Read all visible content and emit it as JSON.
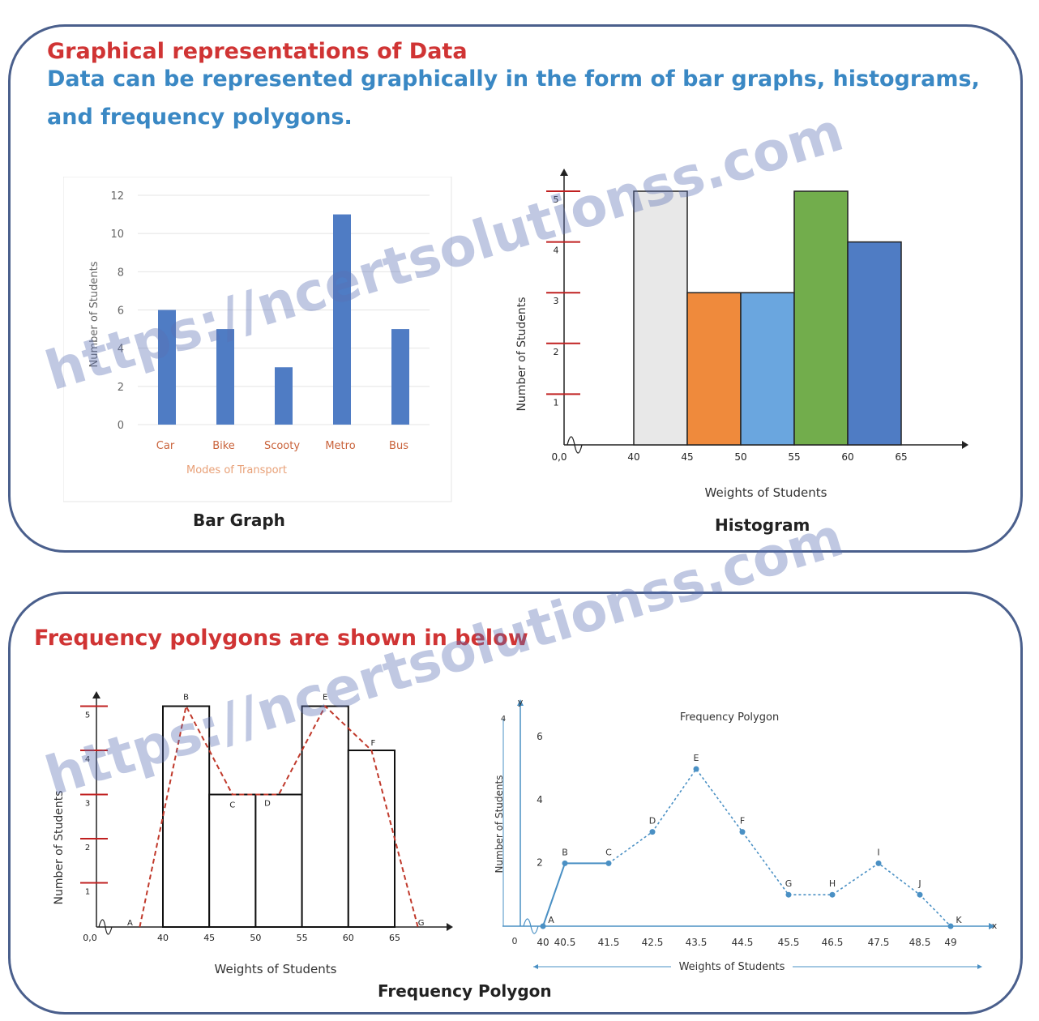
{
  "header": {
    "title": "Graphical representations of Data",
    "subtitle_line1": "Data can be represented graphically in the form of bar graphs, histograms,",
    "subtitle_line2": "and frequency polygons."
  },
  "section2": {
    "title": "Frequency polygons are shown in below"
  },
  "captions": {
    "bar": "Bar Graph",
    "histogram": "Histogram",
    "polygon": "Frequency Polygon"
  },
  "watermark": "https://ncertsolutionss.com",
  "colors": {
    "panel_border": "#4a5f8c",
    "title_red": "#d03434",
    "title_blue": "#3a88c4",
    "bar_blue": "#4f7cc4"
  },
  "chart_data": [
    {
      "id": "bar-graph",
      "type": "bar",
      "title": "Bar Graph",
      "categories": [
        "Car",
        "Bike",
        "Scooty",
        "Metro",
        "Bus"
      ],
      "values": [
        6,
        5,
        3,
        11,
        5
      ],
      "xlabel": "Modes of Transport",
      "ylabel": "Number of Students",
      "ylim": [
        0,
        12
      ],
      "yticks": [
        "0",
        "2",
        "4",
        "6",
        "8",
        "10",
        "12"
      ]
    },
    {
      "id": "histogram",
      "type": "bar",
      "title": "Histogram",
      "bins": [
        "40-45",
        "45-50",
        "50-55",
        "55-60",
        "60-65"
      ],
      "values": [
        5,
        3,
        3,
        5,
        4
      ],
      "bar_colors": [
        "#e8e8e8",
        "#ef8a3c",
        "#6aa6df",
        "#72ad4c",
        "#4f7cc4"
      ],
      "xticks": [
        "0,0",
        "40",
        "45",
        "50",
        "55",
        "60",
        "65"
      ],
      "yticks": [
        "1",
        "2",
        "3",
        "4",
        "5"
      ],
      "xlabel": "Weights of Students",
      "ylabel": "Number of Students"
    },
    {
      "id": "histogram-polygon",
      "type": "bar",
      "title": "",
      "bins": [
        "40-45",
        "45-50",
        "50-55",
        "55-60",
        "60-65"
      ],
      "values": [
        5,
        3,
        3,
        5,
        4
      ],
      "polygon_points": [
        {
          "label": "A",
          "x": 37.5,
          "y": 0
        },
        {
          "label": "B",
          "x": 42.5,
          "y": 5
        },
        {
          "label": "C",
          "x": 47.5,
          "y": 3
        },
        {
          "label": "D",
          "x": 52.5,
          "y": 3
        },
        {
          "label": "E",
          "x": 57.5,
          "y": 5
        },
        {
          "label": "F",
          "x": 62.5,
          "y": 4
        },
        {
          "label": "G",
          "x": 67.5,
          "y": 0
        }
      ],
      "xticks": [
        "0,0",
        "40",
        "45",
        "50",
        "55",
        "60",
        "65"
      ],
      "yticks": [
        "1",
        "2",
        "3",
        "4",
        "5"
      ],
      "xlabel": "Weights of Students",
      "ylabel": "Number of Students"
    },
    {
      "id": "frequency-polygon",
      "type": "line",
      "title": "Frequency Polygon",
      "x": [
        "40",
        "40.5",
        "41.5",
        "42.5",
        "43.5",
        "44.5",
        "45.5",
        "46.5",
        "47.5",
        "48.5",
        "49"
      ],
      "points": [
        {
          "label": "A",
          "y": 0
        },
        {
          "label": "B",
          "y": 2
        },
        {
          "label": "C",
          "y": 2
        },
        {
          "label": "D",
          "y": 3
        },
        {
          "label": "E",
          "y": 5
        },
        {
          "label": "F",
          "y": 3
        },
        {
          "label": "G",
          "y": 1
        },
        {
          "label": "H",
          "y": 1
        },
        {
          "label": "I",
          "y": 2
        },
        {
          "label": "J",
          "y": 1
        },
        {
          "label": "K",
          "y": 0
        }
      ],
      "yticks": [
        "2",
        "4",
        "6"
      ],
      "y_extra_label": "4",
      "origin_label": "0",
      "xlabel": "Weights of Students",
      "ylabel": "Number of Students",
      "axis_x_label": "x",
      "axis_y_label": "y"
    }
  ]
}
